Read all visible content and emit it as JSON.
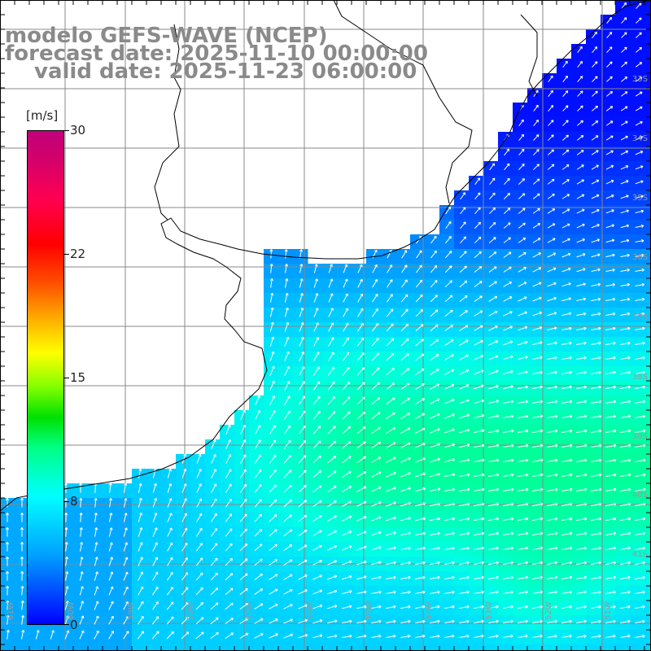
{
  "title": {
    "model": "modelo GEFS-WAVE (NCEP)",
    "forecast": "forecast date: 2025-11-10 00:00:00",
    "valid": "valid date: 2025-11-23 06:00:00"
  },
  "colorbar": {
    "unit": "[m/s]",
    "ticks": [
      "30",
      "22",
      "15",
      "8",
      "0"
    ],
    "tick_values": [
      30,
      22,
      15,
      8,
      0
    ],
    "min": 0,
    "max": 30,
    "colors": [
      "#0000ff",
      "#00a0ff",
      "#00ffff",
      "#00ff80",
      "#00e000",
      "#80ff00",
      "#ffff00",
      "#ffa000",
      "#ff5000",
      "#ff0000",
      "#ff0050",
      "#c0007a"
    ]
  },
  "map": {
    "latitude_labels": [
      "33S",
      "34S",
      "35S",
      "36S",
      "37S",
      "38S",
      "39S",
      "40S",
      "41S"
    ],
    "longitude_labels": [
      "61W",
      "60W",
      "59W",
      "58W",
      "57W",
      "56W",
      "55W",
      "54W",
      "53W",
      "52W",
      "51W"
    ],
    "field": "surface wind speed with wind direction arrows",
    "land_color": "#ffffff",
    "grid_color": "#808080",
    "coast_color": "#000000"
  }
}
